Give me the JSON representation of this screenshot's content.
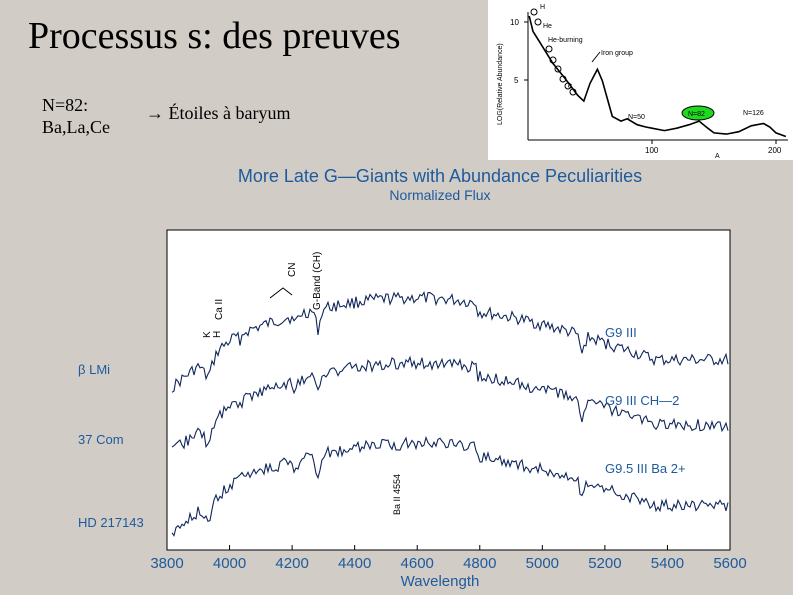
{
  "slide": {
    "title": "Processus s: des preuves",
    "nline1": "N=82:",
    "nline2": "Ba,La,Ce",
    "arrow_text": "→ Étoiles à baryum"
  },
  "abundance_inset": {
    "ylabel": "LOG(Relative Abundance)",
    "yticks": [
      "10",
      "5"
    ],
    "xticks": [
      "100",
      "200"
    ],
    "labels": {
      "h": "H",
      "he": "He",
      "he_burning": "He-burning",
      "iron_group": "Iron group",
      "alpha": "α",
      "n50": "N=50",
      "n82": "N=82",
      "n126": "N=126",
      "a": "A"
    },
    "highlight_color": "#1fd91f"
  },
  "spectrum": {
    "title": "More Late G—Giants with Abundance Peculiarities",
    "subtitle": "Normalized Flux",
    "xlabel": "Wavelength",
    "xticks": [
      "3800",
      "4000",
      "4200",
      "4400",
      "4600",
      "4800",
      "5000",
      "5200",
      "5400",
      "5600"
    ],
    "line_labels": {
      "k": "K",
      "h": "H",
      "ca2": "Ca II",
      "cn": "CN",
      "gband": "G-Band (CH)",
      "ba2": "Ba II 4554"
    },
    "stars": [
      "β LMi",
      "37 Com",
      "HD 217143"
    ],
    "types": [
      "G9 III",
      "G9 III CH—2",
      "G9.5 III Ba 2+"
    ],
    "accent_color": "#1e5a9c"
  },
  "chart_data": [
    {
      "type": "line",
      "title": "",
      "xlabel": "A",
      "ylabel": "LOG(Relative Abundance)",
      "xlim": [
        0,
        210
      ],
      "ylim": [
        0,
        11
      ],
      "series": [
        {
          "x": [
            1,
            4,
            10,
            20,
            30,
            40,
            45,
            50,
            56,
            60,
            68,
            75,
            80,
            88,
            95,
            100,
            110,
            120,
            130,
            138,
            145,
            150,
            160,
            170,
            180,
            190,
            195,
            200,
            208
          ],
          "values": [
            10.5,
            9.2,
            8.2,
            6.5,
            5.2,
            3.8,
            3.3,
            4.8,
            6.0,
            5.0,
            2.0,
            1.6,
            1.8,
            1.3,
            1.1,
            1.0,
            0.8,
            1.0,
            1.3,
            1.6,
            1.0,
            0.6,
            0.5,
            0.7,
            1.2,
            1.4,
            1.1,
            0.6,
            0.3
          ]
        }
      ]
    },
    {
      "type": "line",
      "title": "More Late G—Giants with Abundance Peculiarities",
      "subtitle": "Normalized Flux",
      "xlabel": "Wavelength",
      "ylabel": "",
      "xlim": [
        3800,
        5600
      ],
      "series": [
        {
          "name": "G9 III",
          "offset": 3
        },
        {
          "name": "G9 III CH—2",
          "offset": 2
        },
        {
          "name": "G9.5 III Ba 2+",
          "offset": 1
        }
      ]
    }
  ]
}
